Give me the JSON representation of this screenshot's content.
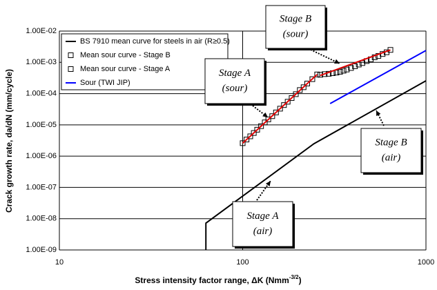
{
  "chart_data": {
    "type": "line",
    "xlabel": {
      "text": "Stress intensity factor range, ΔK (Nmm",
      "sup": "-3/2",
      "end": ")"
    },
    "ylabel": "Crack growth rate, da/dN (mm/cycle)",
    "log_x": true,
    "log_y": true,
    "grid": true,
    "xlim": [
      10,
      1000
    ],
    "ylim": [
      1e-09,
      0.01
    ],
    "xticks": [
      10,
      100,
      1000
    ],
    "yticks": [
      {
        "value": 1e-09,
        "label": "1.00E-09"
      },
      {
        "value": 1e-08,
        "label": "1.00E-08"
      },
      {
        "value": 1e-07,
        "label": "1.00E-07"
      },
      {
        "value": 1e-06,
        "label": "1.00E-06"
      },
      {
        "value": 1e-05,
        "label": "1.00E-05"
      },
      {
        "value": 0.0001,
        "label": "1.00E-04"
      },
      {
        "value": 0.001,
        "label": "1.00E-03"
      },
      {
        "value": 0.01,
        "label": "1.00E-02"
      }
    ],
    "series": [
      {
        "name": "BS 7910 mean curve for steels in air (R≥0.5)",
        "color": "#000000",
        "style": "line",
        "x": [
          63,
          63,
          245,
          1000
        ],
        "values": [
          1e-09,
          7.2e-09,
          2.5e-06,
          0.000257
        ]
      },
      {
        "name": "Mean sour curve - Stage B",
        "color": "#000000",
        "style": "square",
        "x": [
          265,
          280,
          295,
          310,
          325,
          340,
          355,
          370,
          390,
          410,
          430,
          450,
          475,
          500,
          525,
          550,
          580,
          610,
          640
        ],
        "values": [
          0.0004,
          0.00042,
          0.00043,
          0.00045,
          0.00047,
          0.0005,
          0.00054,
          0.00059,
          0.00066,
          0.00075,
          0.00085,
          0.00095,
          0.0011,
          0.00125,
          0.00145,
          0.0016,
          0.00185,
          0.0021,
          0.0025
        ]
      },
      {
        "name": "Mean sour curve - Stage A",
        "color": "#000000",
        "style": "square",
        "x": [
          100,
          105,
          110,
          115,
          120,
          126,
          132,
          138,
          145,
          152,
          160,
          168,
          176,
          185,
          195,
          205,
          215,
          225,
          240,
          255
        ],
        "values": [
          2.6e-06,
          3.4e-06,
          4.3e-06,
          5.5e-06,
          7e-06,
          9.1e-06,
          1.2e-05,
          1.5e-05,
          1.9e-05,
          2.5e-05,
          3.3e-05,
          4.3e-05,
          5.5e-05,
          7.2e-05,
          9.6e-05,
          0.00013,
          0.00016,
          0.00021,
          0.00029,
          0.00041
        ]
      },
      {
        "name": "Sour (TWI JIP)",
        "color": "#0000ff",
        "style": "line",
        "x": [
          300,
          1000
        ],
        "values": [
          4.8e-05,
          0.0024
        ]
      }
    ],
    "fits": [
      {
        "color": "#e00000",
        "x": [
          100,
          255
        ],
        "values": [
          2.6e-06,
          0.00041
        ]
      },
      {
        "color": "#e00000",
        "x": [
          265,
          640
        ],
        "values": [
          0.00038,
          0.0025
        ]
      }
    ],
    "annotations": [
      {
        "lines": [
          "Stage B",
          "(sour)"
        ]
      },
      {
        "lines": [
          "Stage A",
          "(sour)"
        ]
      },
      {
        "lines": [
          "Stage B",
          "(air)"
        ]
      },
      {
        "lines": [
          "Stage A",
          "(air)"
        ]
      }
    ]
  }
}
